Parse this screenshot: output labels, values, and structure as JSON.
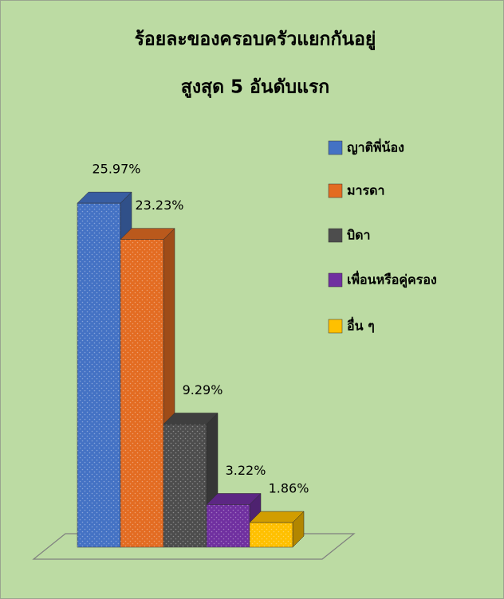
{
  "chart_data": {
    "type": "bar3d",
    "title": [
      "ร้อยละของครอบครัวแยกกันอยู่",
      "สูงสุด 5 อันดับแรก"
    ],
    "categories": [
      "ญาติพี่น้อง",
      "มารดา",
      "บิดา",
      "เพื่อนหรือคู่ครอง",
      "อื่น ๆ"
    ],
    "values": [
      25.97,
      23.23,
      9.29,
      3.22,
      1.86
    ],
    "value_labels": [
      "25.97%",
      "23.23%",
      "9.29%",
      "3.22%",
      "1.86%"
    ],
    "colors": [
      "#4472c4",
      "#e36c22",
      "#4d4d4d",
      "#7030a0",
      "#ffc000"
    ],
    "legend": "right"
  }
}
